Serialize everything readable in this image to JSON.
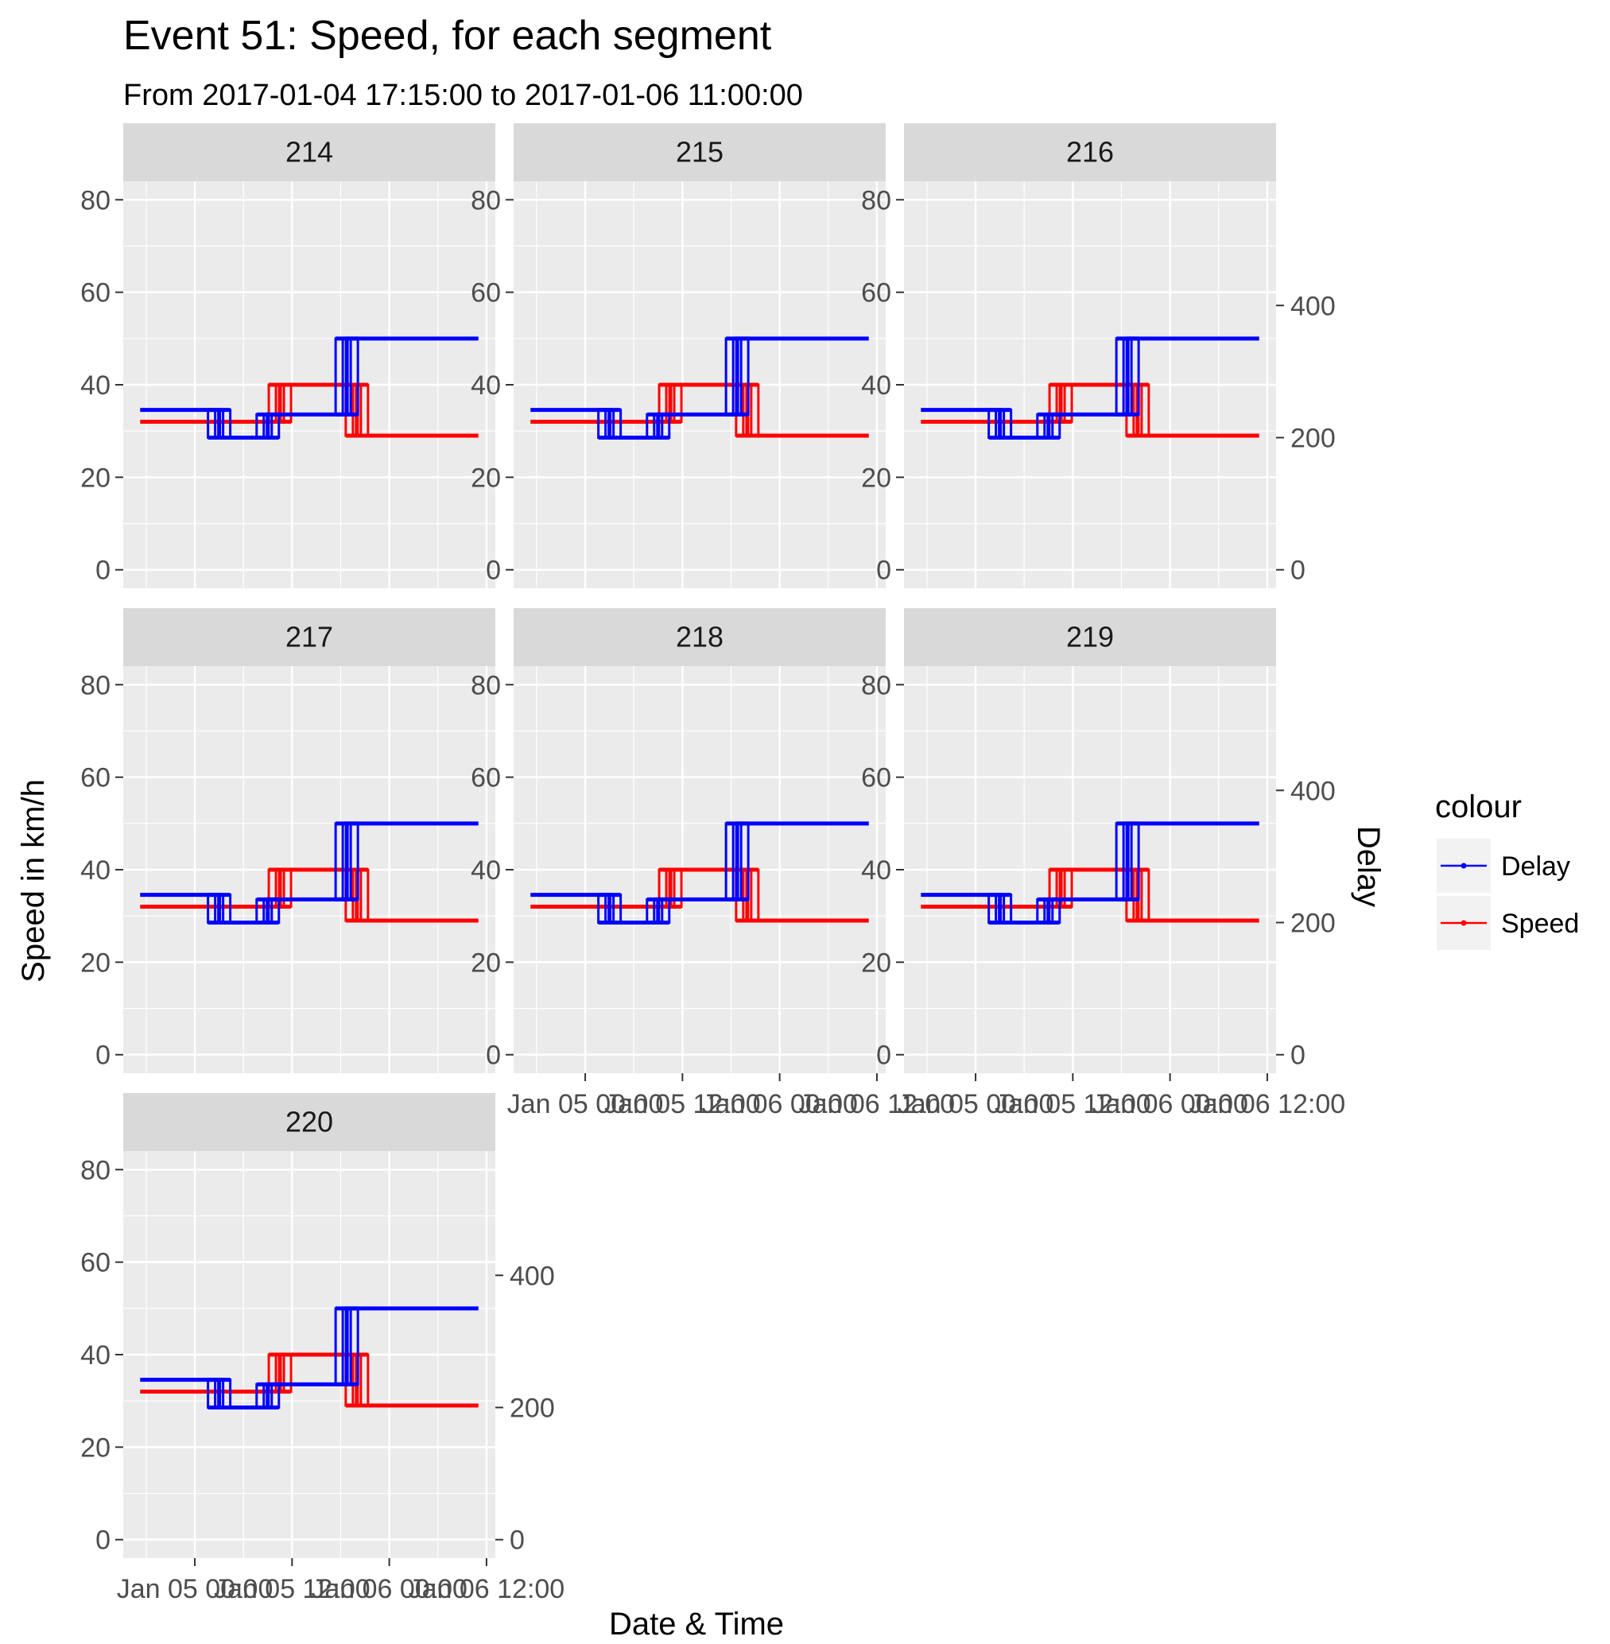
{
  "chart_data": {
    "type": "line",
    "title": "Event 51: Speed, for each segment",
    "subtitle": "From 2017-01-04 17:15:00 to 2017-01-06 11:00:00",
    "xlabel": "Date & Time",
    "ylabel": "Speed in km/h",
    "y2label": "Delay",
    "x_range": [
      "2017-01-04 17:15",
      "2017-01-06 11:00"
    ],
    "x_ticks": [
      "Jan 05 00:00",
      "Jan 05 12:00",
      "Jan 06 00:00",
      "Jan 06 12:00"
    ],
    "ylim": [
      0,
      80
    ],
    "y_ticks": [
      0,
      20,
      40,
      60,
      80
    ],
    "y2lim": [
      0,
      560
    ],
    "y2_ticks": [
      0,
      200,
      400
    ],
    "grid": true,
    "legend": {
      "title": "colour",
      "position": "right",
      "entries": [
        {
          "label": "Delay",
          "color": "#0000ff"
        },
        {
          "label": "Speed",
          "color": "#ff0000"
        }
      ]
    },
    "colors": {
      "delay": "#0000ff",
      "speed": "#ff0000"
    },
    "panels": [
      {
        "label": "214"
      },
      {
        "label": "215"
      },
      {
        "label": "216"
      },
      {
        "label": "217"
      },
      {
        "label": "218"
      },
      {
        "label": "219"
      },
      {
        "label": "220"
      }
    ],
    "series": [
      {
        "name": "Delay",
        "axis": "secondary",
        "x": [
          "2017-01-04 17:15",
          "2017-01-05 03:00",
          "2017-01-05 09:00",
          "2017-01-05 18:45",
          "2017-01-06 11:00"
        ],
        "values": [
          242,
          200,
          235,
          350,
          350
        ]
      },
      {
        "name": "Speed",
        "axis": "primary",
        "x": [
          "2017-01-04 17:15",
          "2017-01-05 10:30",
          "2017-01-05 20:00",
          "2017-01-06 11:00"
        ],
        "values": [
          32,
          40,
          29,
          29
        ]
      }
    ]
  }
}
